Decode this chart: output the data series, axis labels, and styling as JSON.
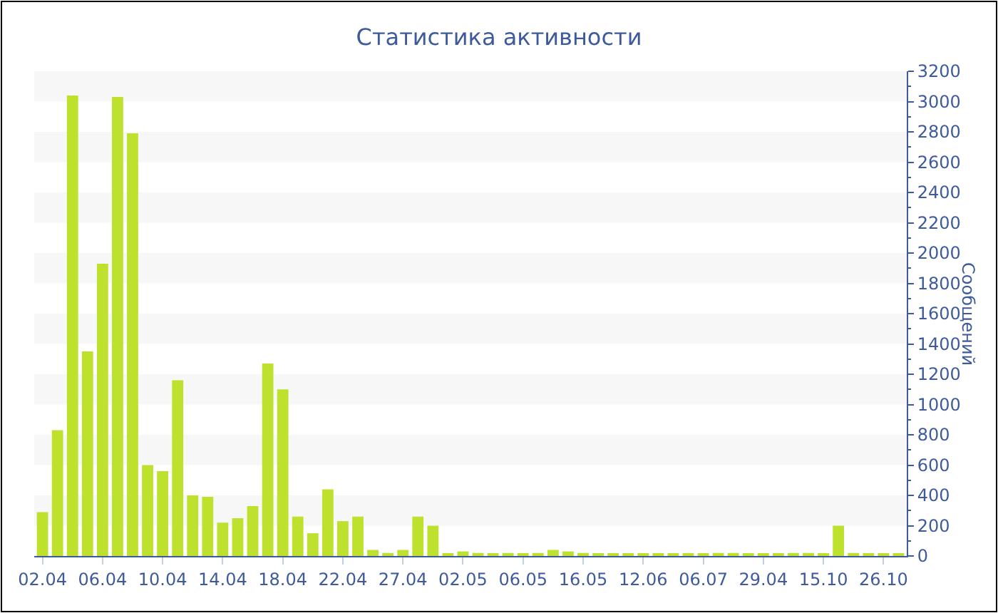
{
  "chart_data": {
    "type": "bar",
    "title": "Статистика активности",
    "ylabel": "Сообщений",
    "categories": [
      "02.04",
      null,
      null,
      null,
      "06.04",
      null,
      null,
      null,
      "10.04",
      null,
      null,
      null,
      "14.04",
      null,
      null,
      null,
      "18.04",
      null,
      null,
      null,
      "22.04",
      null,
      null,
      null,
      "27.04",
      null,
      null,
      null,
      "02.05",
      null,
      null,
      null,
      "06.05",
      null,
      null,
      null,
      "16.05",
      null,
      null,
      null,
      "12.06",
      null,
      null,
      null,
      "06.07",
      null,
      null,
      null,
      "29.04",
      null,
      null,
      null,
      "15.10",
      null,
      null,
      null,
      "26.10",
      null
    ],
    "values": [
      290,
      830,
      3040,
      1350,
      1930,
      3030,
      2790,
      600,
      560,
      1160,
      400,
      390,
      220,
      250,
      330,
      1270,
      1100,
      260,
      150,
      440,
      230,
      260,
      40,
      20,
      40,
      260,
      200,
      10,
      30,
      20,
      10,
      20,
      10,
      20,
      40,
      30,
      20,
      10,
      10,
      10,
      10,
      10,
      10,
      10,
      10,
      20,
      20,
      10,
      10,
      10,
      20,
      20,
      10,
      200,
      20,
      10,
      10,
      10
    ],
    "color": "#bde12d",
    "ylim": [
      0,
      3200
    ],
    "yticks": [
      0,
      200,
      400,
      600,
      800,
      1000,
      1200,
      1400,
      1600,
      1800,
      2000,
      2200,
      2400,
      2600,
      2800,
      3000,
      3200
    ],
    "grid": false,
    "legend": false,
    "bands": [
      {
        "axis": "y",
        "from": 200,
        "to": 400,
        "color": "#f7f7f7"
      },
      {
        "axis": "y",
        "from": 600,
        "to": 800,
        "color": "#f7f7f7"
      },
      {
        "axis": "y",
        "from": 1000,
        "to": 1200,
        "color": "#f7f7f7"
      },
      {
        "axis": "y",
        "from": 1400,
        "to": 1600,
        "color": "#f7f7f7"
      },
      {
        "axis": "y",
        "from": 1800,
        "to": 2000,
        "color": "#f7f7f7"
      },
      {
        "axis": "y",
        "from": 2200,
        "to": 2400,
        "color": "#f7f7f7"
      },
      {
        "axis": "y",
        "from": 2600,
        "to": 2800,
        "color": "#f7f7f7"
      },
      {
        "axis": "y",
        "from": 3000,
        "to": 3200,
        "color": "#f7f7f7"
      }
    ]
  }
}
